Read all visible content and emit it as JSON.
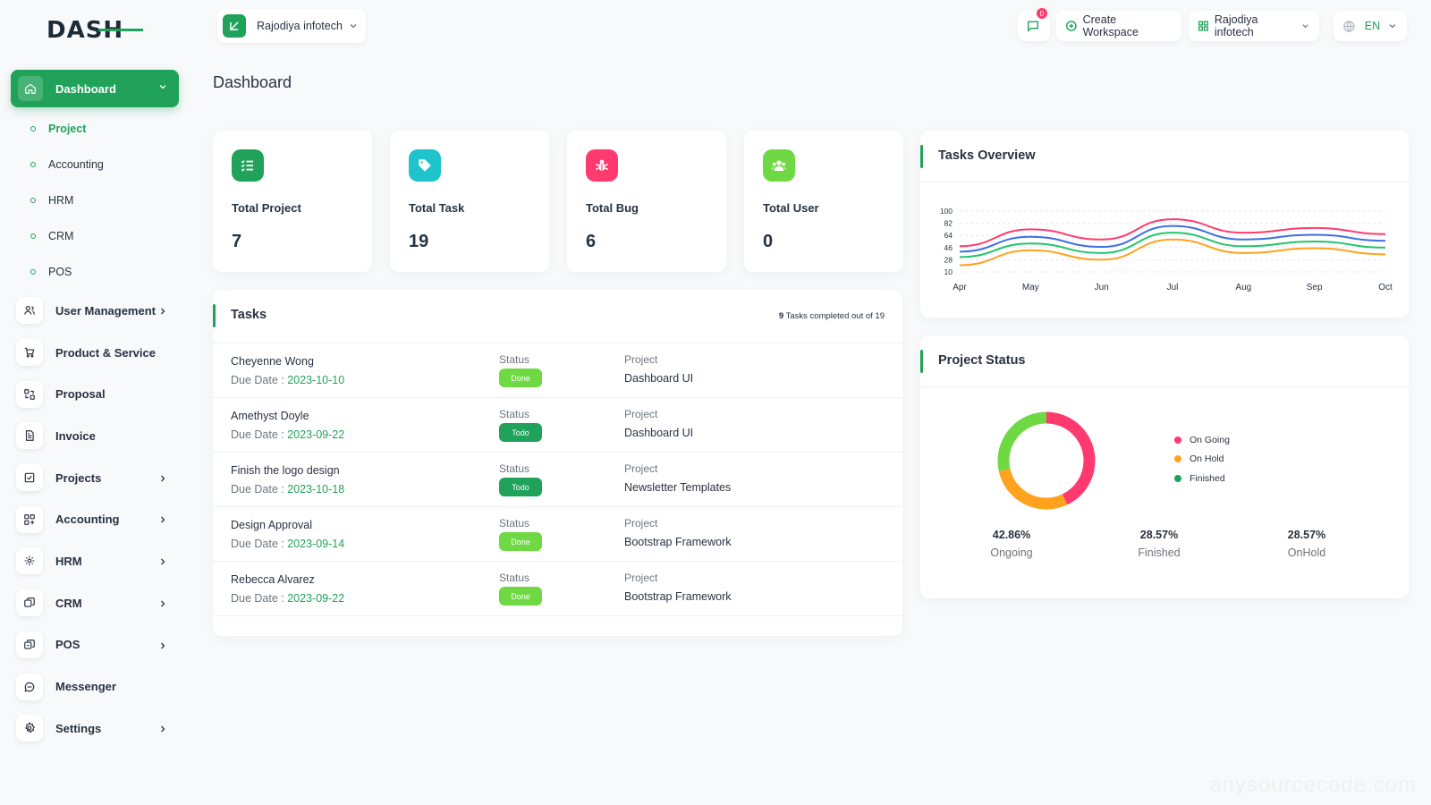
{
  "brand": {
    "logo_text": "DASH",
    "accent": "#20a25a"
  },
  "topbar": {
    "workspace_name": "Rajodiya infotech",
    "notification_count": "0",
    "create_workspace": "Create Workspace",
    "user_workspace": "Rajodiya infotech",
    "language": "EN"
  },
  "sidebar": {
    "active": {
      "label": "Dashboard",
      "icon": "home-icon"
    },
    "sub_items": [
      "Project",
      "Accounting",
      "HRM",
      "CRM",
      "POS"
    ],
    "items": [
      {
        "label": "User Management",
        "icon": "users-icon",
        "chevron": true
      },
      {
        "label": "Product & Service",
        "icon": "cart-icon",
        "chevron": false
      },
      {
        "label": "Proposal",
        "icon": "proposal-icon",
        "chevron": false
      },
      {
        "label": "Invoice",
        "icon": "invoice-icon",
        "chevron": false
      },
      {
        "label": "Projects",
        "icon": "projects-icon",
        "chevron": true
      },
      {
        "label": "Accounting",
        "icon": "accounting-icon",
        "chevron": true
      },
      {
        "label": "HRM",
        "icon": "hrm-icon",
        "chevron": true
      },
      {
        "label": "CRM",
        "icon": "crm-icon",
        "chevron": true
      },
      {
        "label": "POS",
        "icon": "pos-icon",
        "chevron": true
      },
      {
        "label": "Messenger",
        "icon": "messenger-icon",
        "chevron": false
      },
      {
        "label": "Settings",
        "icon": "settings-icon",
        "chevron": true
      }
    ]
  },
  "page": {
    "title": "Dashboard"
  },
  "stats": [
    {
      "label": "Total Project",
      "value": "7",
      "color": "#20a25a",
      "icon": "list-check-icon"
    },
    {
      "label": "Total Task",
      "value": "19",
      "color": "#1ec3cc",
      "icon": "tag-icon"
    },
    {
      "label": "Total Bug",
      "value": "6",
      "color": "#ff3a6e",
      "icon": "bug-icon"
    },
    {
      "label": "Total User",
      "value": "0",
      "color": "#6fd943",
      "icon": "users-group-icon"
    }
  ],
  "tasks": {
    "title": "Tasks",
    "completed_count": "9",
    "completed_text": "Tasks completed out of 19",
    "status_label": "Status",
    "project_label": "Project",
    "due_label": "Due Date : ",
    "rows": [
      {
        "name": "Cheyenne Wong",
        "due": "2023-10-10",
        "status": "Done",
        "project": "Dashboard UI"
      },
      {
        "name": "Amethyst Doyle",
        "due": "2023-09-22",
        "status": "Todo",
        "project": "Dashboard UI"
      },
      {
        "name": "Finish the logo design",
        "due": "2023-10-18",
        "status": "Todo",
        "project": "Newsletter Templates"
      },
      {
        "name": "Design Approval",
        "due": "2023-09-14",
        "status": "Done",
        "project": "Bootstrap Framework"
      },
      {
        "name": "Rebecca Alvarez",
        "due": "2023-09-22",
        "status": "Done",
        "project": "Bootstrap Framework"
      }
    ],
    "status_colors": {
      "Done": "#6fd943",
      "Todo": "#20a25a"
    }
  },
  "overview": {
    "title": "Tasks Overview"
  },
  "project_status": {
    "title": "Project Status",
    "legend": [
      {
        "label": "On Going",
        "color": "#ff3a6e"
      },
      {
        "label": "On Hold",
        "color": "#ffa21d"
      },
      {
        "label": "Finished",
        "color": "#20a25a"
      }
    ],
    "percentages": [
      {
        "value": "42.86%",
        "label": "Ongoing"
      },
      {
        "value": "28.57%",
        "label": "Finished"
      },
      {
        "value": "28.57%",
        "label": "OnHold"
      }
    ]
  },
  "chart_data": [
    {
      "type": "line",
      "title": "Tasks Overview",
      "x": [
        "Apr",
        "May",
        "Jun",
        "Jul",
        "Aug",
        "Sep",
        "Oct"
      ],
      "y_ticks": [
        100,
        82,
        64,
        46,
        28,
        10
      ],
      "ylim": [
        10,
        100
      ],
      "series": [
        {
          "color": "#ff3a6e",
          "values": [
            48,
            73,
            58,
            88,
            68,
            75,
            66
          ]
        },
        {
          "color": "#3e6fe5",
          "values": [
            40,
            62,
            47,
            78,
            58,
            65,
            56
          ]
        },
        {
          "color": "#20c56a",
          "values": [
            32,
            52,
            38,
            68,
            48,
            55,
            46
          ]
        },
        {
          "color": "#ffa21d",
          "values": [
            20,
            42,
            28,
            58,
            38,
            45,
            36
          ]
        }
      ],
      "grid": true,
      "legend": "none"
    },
    {
      "type": "pie",
      "title": "Project Status",
      "categories": [
        "On Going",
        "On Hold",
        "Finished"
      ],
      "values": [
        42.86,
        28.57,
        28.57
      ],
      "colors": [
        "#ff3a6e",
        "#ffa21d",
        "#6fd943"
      ]
    }
  ]
}
